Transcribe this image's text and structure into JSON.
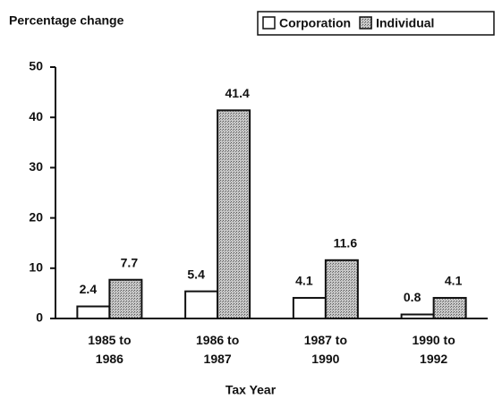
{
  "chart_data": {
    "type": "bar",
    "y_label": "Percentage change",
    "x_label": "Tax Year",
    "categories": [
      "1985 to 1986",
      "1986 to 1987",
      "1987 to 1990",
      "1990 to 1992"
    ],
    "series": [
      {
        "name": "Corporation",
        "color": "#ffffff",
        "values": [
          2.4,
          5.4,
          4.1,
          0.8
        ]
      },
      {
        "name": "Individual",
        "color": "#a8a8a8",
        "values": [
          7.7,
          41.4,
          11.6,
          4.1
        ]
      }
    ],
    "ylim": [
      0,
      50
    ],
    "yticks": [
      0,
      10,
      20,
      30,
      40,
      50
    ],
    "grid": false,
    "legend": "top-right"
  }
}
